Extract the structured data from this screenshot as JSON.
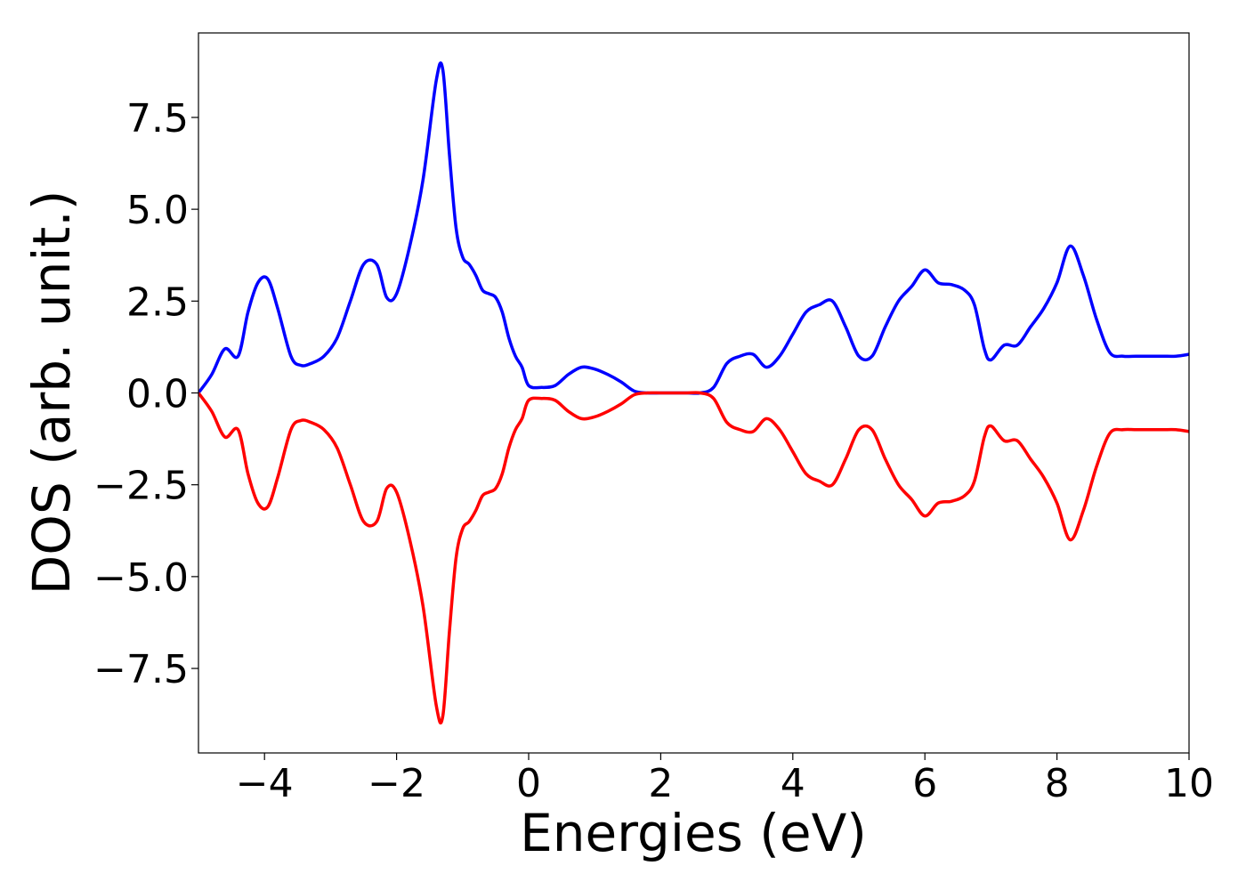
{
  "chart_data": {
    "type": "line",
    "title": "",
    "xlabel": "Energies (eV)",
    "ylabel": "DOS (arb. unit.)",
    "xlim": [
      -5,
      10
    ],
    "ylim": [
      -9.8,
      9.8
    ],
    "xticks": [
      -4,
      -2,
      0,
      2,
      4,
      6,
      8,
      10
    ],
    "xtick_labels": [
      "−4",
      "−2",
      "0",
      "2",
      "4",
      "6",
      "8",
      "10"
    ],
    "yticks": [
      -7.5,
      -5.0,
      -2.5,
      0.0,
      2.5,
      5.0,
      7.5
    ],
    "ytick_labels": [
      "−7.5",
      "−5.0",
      "−2.5",
      "0.0",
      "2.5",
      "5.0",
      "7.5"
    ],
    "grid": false,
    "legend": "none",
    "series": [
      {
        "color": "#0000ff",
        "x": [
          -5.0,
          -4.8,
          -4.6,
          -4.4,
          -4.25,
          -4.1,
          -3.95,
          -3.8,
          -3.6,
          -3.45,
          -3.3,
          -3.1,
          -2.9,
          -2.7,
          -2.5,
          -2.3,
          -2.15,
          -2.0,
          -1.8,
          -1.6,
          -1.4,
          -1.3,
          -1.2,
          -1.1,
          -1.0,
          -0.9,
          -0.8,
          -0.7,
          -0.6,
          -0.5,
          -0.4,
          -0.3,
          -0.2,
          -0.1,
          0.0,
          0.2,
          0.4,
          0.6,
          0.8,
          1.0,
          1.2,
          1.4,
          1.6,
          1.8,
          2.0,
          2.2,
          2.4,
          2.6,
          2.8,
          3.0,
          3.2,
          3.4,
          3.6,
          3.8,
          4.0,
          4.2,
          4.4,
          4.6,
          4.8,
          5.0,
          5.2,
          5.4,
          5.6,
          5.8,
          6.0,
          6.2,
          6.4,
          6.6,
          6.75,
          6.9,
          7.0,
          7.2,
          7.4,
          7.6,
          7.8,
          8.0,
          8.2,
          8.4,
          8.6,
          8.8,
          9.0,
          9.2,
          9.4,
          9.6,
          9.8,
          10.0
        ],
        "y": [
          0.0,
          0.5,
          1.2,
          1.0,
          2.2,
          3.0,
          3.1,
          2.3,
          1.0,
          0.75,
          0.8,
          1.0,
          1.5,
          2.5,
          3.5,
          3.5,
          2.6,
          2.7,
          4.0,
          5.8,
          8.5,
          8.8,
          6.5,
          4.5,
          3.7,
          3.5,
          3.2,
          2.8,
          2.7,
          2.6,
          2.2,
          1.5,
          1.0,
          0.7,
          0.2,
          0.15,
          0.2,
          0.5,
          0.7,
          0.65,
          0.5,
          0.3,
          0.05,
          0.0,
          0.0,
          0.0,
          0.0,
          0.0,
          0.15,
          0.8,
          1.0,
          1.05,
          0.7,
          1.0,
          1.6,
          2.2,
          2.4,
          2.5,
          1.8,
          1.0,
          1.0,
          1.8,
          2.5,
          2.9,
          3.35,
          3.0,
          2.95,
          2.8,
          2.4,
          1.2,
          0.9,
          1.3,
          1.3,
          1.8,
          2.3,
          3.0,
          4.0,
          3.2,
          2.0,
          1.1,
          1.0,
          1.0,
          1.0,
          1.0,
          1.0,
          1.05
        ]
      },
      {
        "color": "#ff0000",
        "x": [
          -5.0,
          -4.8,
          -4.6,
          -4.4,
          -4.25,
          -4.1,
          -3.95,
          -3.8,
          -3.6,
          -3.45,
          -3.3,
          -3.1,
          -2.9,
          -2.7,
          -2.5,
          -2.3,
          -2.15,
          -2.0,
          -1.8,
          -1.6,
          -1.4,
          -1.3,
          -1.2,
          -1.1,
          -1.0,
          -0.9,
          -0.8,
          -0.7,
          -0.6,
          -0.5,
          -0.4,
          -0.3,
          -0.2,
          -0.1,
          0.0,
          0.2,
          0.4,
          0.6,
          0.8,
          1.0,
          1.2,
          1.4,
          1.6,
          1.8,
          2.0,
          2.2,
          2.4,
          2.6,
          2.8,
          3.0,
          3.2,
          3.4,
          3.6,
          3.8,
          4.0,
          4.2,
          4.4,
          4.6,
          4.8,
          5.0,
          5.2,
          5.4,
          5.6,
          5.8,
          6.0,
          6.2,
          6.4,
          6.6,
          6.75,
          6.9,
          7.0,
          7.2,
          7.4,
          7.6,
          7.8,
          8.0,
          8.2,
          8.4,
          8.6,
          8.8,
          9.0,
          9.2,
          9.4,
          9.6,
          9.8,
          10.0
        ],
        "y": [
          0.0,
          -0.5,
          -1.2,
          -1.0,
          -2.2,
          -3.0,
          -3.1,
          -2.3,
          -1.0,
          -0.75,
          -0.8,
          -1.0,
          -1.5,
          -2.5,
          -3.5,
          -3.5,
          -2.6,
          -2.7,
          -4.0,
          -5.8,
          -8.5,
          -8.8,
          -6.5,
          -4.5,
          -3.7,
          -3.5,
          -3.2,
          -2.8,
          -2.7,
          -2.6,
          -2.2,
          -1.5,
          -1.0,
          -0.7,
          -0.2,
          -0.15,
          -0.2,
          -0.5,
          -0.7,
          -0.65,
          -0.5,
          -0.3,
          -0.05,
          0.0,
          0.0,
          0.0,
          0.0,
          0.0,
          -0.15,
          -0.8,
          -1.0,
          -1.05,
          -0.7,
          -1.0,
          -1.6,
          -2.2,
          -2.4,
          -2.5,
          -1.8,
          -1.0,
          -1.0,
          -1.8,
          -2.5,
          -2.9,
          -3.35,
          -3.0,
          -2.95,
          -2.8,
          -2.4,
          -1.2,
          -0.9,
          -1.3,
          -1.3,
          -1.8,
          -2.3,
          -3.0,
          -4.0,
          -3.2,
          -2.0,
          -1.1,
          -1.0,
          -1.0,
          -1.0,
          -1.0,
          -1.0,
          -1.05
        ]
      }
    ]
  }
}
